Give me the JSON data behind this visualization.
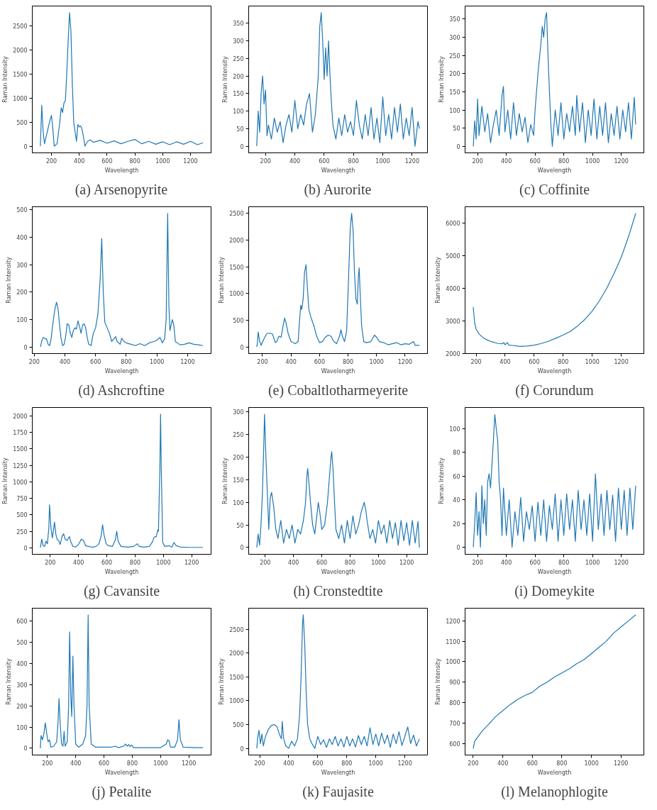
{
  "chart_data": [
    {
      "type": "line",
      "title": "(a) Arsenopyrite",
      "xlabel": "Wavelength",
      "ylabel": "Raman Intensity",
      "xlim": [
        62,
        1348
      ],
      "ylim": [
        -140,
        2920
      ],
      "xticks": [
        200,
        400,
        600,
        800,
        1000,
        1200
      ],
      "yticks": [
        0,
        500,
        1000,
        1500,
        2000,
        2500
      ],
      "series": [
        {
          "color": "#1f77b4",
          "x": [
            120,
            130,
            140,
            150,
            170,
            190,
            200,
            210,
            220,
            240,
            260,
            270,
            280,
            290,
            300,
            310,
            320,
            330,
            340,
            350,
            360,
            370,
            380,
            390,
            400,
            410,
            420,
            430,
            440,
            460,
            480,
            500,
            550,
            600,
            650,
            700,
            750,
            800,
            850,
            900,
            950,
            1000,
            1050,
            1100,
            1150,
            1200,
            1250,
            1290
          ],
          "values": [
            0,
            850,
            300,
            50,
            300,
            550,
            640,
            350,
            0,
            50,
            500,
            800,
            700,
            900,
            950,
            1500,
            2200,
            2780,
            2400,
            1300,
            500,
            300,
            100,
            450,
            400,
            420,
            350,
            200,
            0,
            100,
            130,
            80,
            120,
            60,
            110,
            50,
            100,
            140,
            50,
            100,
            40,
            90,
            30,
            90,
            40,
            100,
            30,
            70
          ]
        }
      ]
    },
    {
      "type": "line",
      "title": "(b) Aurorite",
      "xlabel": "Wavelength",
      "ylabel": "Raman Intensity",
      "xlim": [
        85,
        1305
      ],
      "ylim": [
        -19,
        399
      ],
      "xticks": [
        200,
        400,
        600,
        800,
        1000,
        1200
      ],
      "yticks": [
        0,
        50,
        100,
        150,
        200,
        250,
        300,
        350
      ],
      "series": [
        {
          "color": "#1f77b4",
          "x": [
            140,
            150,
            160,
            170,
            180,
            190,
            200,
            210,
            220,
            240,
            260,
            280,
            300,
            320,
            340,
            360,
            380,
            400,
            420,
            440,
            460,
            480,
            500,
            520,
            540,
            560,
            570,
            580,
            590,
            600,
            610,
            620,
            630,
            640,
            650,
            660,
            680,
            700,
            720,
            740,
            760,
            780,
            800,
            820,
            840,
            860,
            880,
            900,
            920,
            940,
            960,
            980,
            1000,
            1020,
            1040,
            1060,
            1080,
            1100,
            1120,
            1140,
            1160,
            1180,
            1200,
            1220,
            1240,
            1250
          ],
          "values": [
            0,
            100,
            40,
            150,
            200,
            120,
            160,
            30,
            60,
            20,
            80,
            40,
            70,
            10,
            60,
            90,
            40,
            130,
            50,
            90,
            60,
            120,
            150,
            40,
            90,
            200,
            340,
            380,
            300,
            190,
            280,
            200,
            300,
            200,
            120,
            60,
            20,
            80,
            30,
            90,
            40,
            70,
            30,
            130,
            60,
            20,
            90,
            30,
            110,
            20,
            80,
            10,
            140,
            30,
            90,
            20,
            110,
            40,
            120,
            20,
            80,
            30,
            110,
            0,
            70,
            50
          ]
        }
      ]
    },
    {
      "type": "line",
      "title": "(c) Coffinite",
      "xlabel": "Wavelength",
      "ylabel": "Raman Intensity",
      "xlim": [
        113,
        1357
      ],
      "ylim": [
        -18,
        386
      ],
      "xticks": [
        200,
        400,
        600,
        800,
        1000,
        1200
      ],
      "yticks": [
        0,
        50,
        100,
        150,
        200,
        250,
        300,
        350
      ],
      "series": [
        {
          "color": "#1f77b4",
          "x": [
            170,
            180,
            190,
            200,
            210,
            230,
            250,
            270,
            290,
            310,
            330,
            350,
            370,
            380,
            390,
            410,
            430,
            450,
            470,
            490,
            510,
            530,
            550,
            570,
            590,
            600,
            620,
            640,
            650,
            660,
            670,
            680,
            690,
            700,
            710,
            720,
            740,
            760,
            780,
            800,
            820,
            840,
            860,
            880,
            890,
            910,
            930,
            950,
            970,
            990,
            1010,
            1030,
            1050,
            1070,
            1090,
            1110,
            1130,
            1150,
            1170,
            1190,
            1210,
            1230,
            1250,
            1270,
            1290,
            1300
          ],
          "values": [
            0,
            70,
            20,
            130,
            30,
            110,
            40,
            90,
            10,
            60,
            100,
            30,
            140,
            165,
            40,
            100,
            20,
            120,
            30,
            90,
            40,
            80,
            10,
            60,
            30,
            100,
            200,
            280,
            330,
            300,
            350,
            368,
            250,
            150,
            60,
            0,
            100,
            30,
            120,
            20,
            90,
            40,
            110,
            30,
            140,
            40,
            120,
            10,
            100,
            30,
            130,
            20,
            110,
            30,
            120,
            10,
            90,
            30,
            110,
            20,
            100,
            40,
            120,
            20,
            135,
            60
          ]
        }
      ]
    },
    {
      "type": "line",
      "title": "(d) Ashcroftine",
      "xlabel": "Wavelength",
      "ylabel": "Raman Intensity",
      "xlim": [
        187,
        1353
      ],
      "ylim": [
        -24,
        511
      ],
      "xticks": [
        200,
        400,
        600,
        800,
        1000,
        1200
      ],
      "yticks": [
        0,
        100,
        200,
        300,
        400,
        500
      ],
      "series": [
        {
          "color": "#1f77b4",
          "x": [
            240,
            250,
            260,
            270,
            280,
            290,
            300,
            310,
            320,
            335,
            345,
            355,
            365,
            375,
            385,
            395,
            405,
            415,
            425,
            435,
            445,
            455,
            465,
            475,
            485,
            495,
            505,
            515,
            525,
            535,
            545,
            555,
            570,
            585,
            600,
            615,
            630,
            640,
            650,
            660,
            675,
            690,
            705,
            720,
            730,
            740,
            760,
            770,
            785,
            800,
            830,
            860,
            890,
            920,
            950,
            980,
            1000,
            1020,
            1035,
            1050,
            1060,
            1070,
            1078,
            1085,
            1100,
            1110,
            1120,
            1150,
            1180,
            1210,
            1240,
            1270,
            1300
          ],
          "values": [
            0,
            25,
            35,
            30,
            30,
            10,
            5,
            30,
            80,
            140,
            163,
            140,
            80,
            30,
            5,
            10,
            40,
            85,
            80,
            50,
            35,
            60,
            70,
            65,
            95,
            75,
            50,
            80,
            85,
            70,
            35,
            10,
            5,
            50,
            70,
            120,
            250,
            395,
            200,
            90,
            70,
            50,
            20,
            30,
            38,
            20,
            10,
            32,
            20,
            15,
            10,
            5,
            12,
            5,
            15,
            20,
            25,
            35,
            15,
            30,
            100,
            487,
            150,
            60,
            100,
            80,
            20,
            8,
            10,
            15,
            10,
            8,
            5
          ]
        }
      ]
    },
    {
      "type": "line",
      "title": "(e) Cobaltlotharmeyerite",
      "xlabel": "Wavelength",
      "ylabel": "Raman Intensity",
      "xlim": [
        103,
        1357
      ],
      "ylim": [
        -125,
        2625
      ],
      "xticks": [
        200,
        400,
        600,
        800,
        1000,
        1200
      ],
      "yticks": [
        0,
        500,
        1000,
        1500,
        2000,
        2500
      ],
      "series": [
        {
          "color": "#1f77b4",
          "x": [
            160,
            165,
            170,
            180,
            190,
            210,
            230,
            250,
            270,
            290,
            300,
            315,
            330,
            345,
            355,
            365,
            380,
            400,
            430,
            450,
            460,
            468,
            475,
            485,
            495,
            505,
            515,
            525,
            540,
            560,
            580,
            600,
            620,
            640,
            660,
            680,
            700,
            720,
            740,
            750,
            760,
            775,
            790,
            805,
            815,
            825,
            835,
            845,
            855,
            865,
            872,
            878,
            885,
            895,
            910,
            930,
            960,
            985,
            1000,
            1020,
            1050,
            1080,
            1110,
            1140,
            1170,
            1200,
            1230,
            1260,
            1270,
            1300
          ],
          "values": [
            0,
            100,
            280,
            100,
            30,
            150,
            250,
            260,
            240,
            80,
            100,
            200,
            180,
            400,
            540,
            450,
            250,
            100,
            60,
            100,
            500,
            780,
            700,
            900,
            1400,
            1540,
            1100,
            700,
            550,
            400,
            200,
            80,
            100,
            180,
            220,
            200,
            100,
            60,
            200,
            320,
            200,
            100,
            300,
            1400,
            2200,
            2500,
            2200,
            1400,
            900,
            800,
            1300,
            1480,
            1000,
            400,
            100,
            80,
            100,
            220,
            180,
            100,
            80,
            40,
            60,
            80,
            40,
            60,
            50,
            100,
            30,
            30
          ]
        }
      ]
    },
    {
      "type": "line",
      "title": "(f) Corundum",
      "xlabel": "Wavelength",
      "ylabel": "Raman Intensity",
      "xlim": [
        124,
        1356
      ],
      "ylim": [
        2000,
        6500
      ],
      "xticks": [
        200,
        400,
        600,
        800,
        1000,
        1200
      ],
      "yticks": [
        2000,
        3000,
        4000,
        5000,
        6000
      ],
      "series": [
        {
          "color": "#1f77b4",
          "x": [
            180,
            190,
            200,
            220,
            250,
            280,
            310,
            350,
            380,
            390,
            400,
            415,
            425,
            450,
            500,
            550,
            600,
            650,
            700,
            750,
            800,
            850,
            900,
            950,
            1000,
            1050,
            1100,
            1150,
            1200,
            1250,
            1300
          ],
          "values": [
            3430,
            2950,
            2750,
            2600,
            2480,
            2410,
            2360,
            2310,
            2300,
            2340,
            2270,
            2340,
            2260,
            2250,
            2220,
            2230,
            2260,
            2310,
            2380,
            2470,
            2570,
            2680,
            2850,
            3050,
            3300,
            3620,
            4000,
            4450,
            4950,
            5580,
            6300
          ]
        }
      ]
    },
    {
      "type": "line",
      "title": "(g) Cavansite",
      "xlabel": "Wavelength",
      "ylabel": "Raman Intensity",
      "xlim": [
        73,
        1337
      ],
      "ylim": [
        -100,
        2130
      ],
      "xticks": [
        200,
        400,
        600,
        800,
        1000,
        1200
      ],
      "yticks": [
        0,
        250,
        500,
        750,
        1000,
        1250,
        1500,
        1750,
        2000
      ],
      "series": [
        {
          "color": "#1f77b4",
          "x": [
            130,
            140,
            150,
            160,
            170,
            180,
            190,
            195,
            205,
            215,
            225,
            230,
            240,
            250,
            260,
            270,
            285,
            295,
            305,
            320,
            335,
            345,
            360,
            380,
            400,
            420,
            435,
            450,
            470,
            490,
            510,
            530,
            545,
            560,
            570,
            580,
            595,
            610,
            640,
            660,
            670,
            680,
            700,
            750,
            790,
            815,
            830,
            860,
            900,
            920,
            935,
            950,
            960,
            965,
            975,
            980,
            985,
            995,
            1010,
            1040,
            1060,
            1075,
            1090,
            1120,
            1180,
            1280
          ],
          "values": [
            0,
            130,
            30,
            20,
            100,
            60,
            300,
            650,
            300,
            150,
            300,
            390,
            200,
            120,
            110,
            50,
            180,
            210,
            130,
            110,
            170,
            90,
            20,
            10,
            50,
            130,
            110,
            30,
            20,
            10,
            10,
            30,
            60,
            180,
            350,
            200,
            60,
            30,
            20,
            120,
            250,
            100,
            20,
            10,
            20,
            60,
            20,
            10,
            20,
            80,
            160,
            170,
            270,
            250,
            1200,
            2030,
            1200,
            80,
            20,
            30,
            10,
            80,
            30,
            10,
            5,
            5
          ]
        }
      ]
    },
    {
      "type": "line",
      "title": "(h) Cronstedtite",
      "xlabel": "Wavelength",
      "ylabel": "Raman Intensity",
      "xlim": [
        83,
        1347
      ],
      "ylim": [
        -15,
        310
      ],
      "xticks": [
        200,
        400,
        600,
        800,
        1000,
        1200
      ],
      "yticks": [
        0,
        50,
        100,
        150,
        200,
        250,
        300
      ],
      "series": [
        {
          "color": "#1f77b4",
          "x": [
            140,
            150,
            160,
            170,
            180,
            190,
            195,
            205,
            215,
            225,
            235,
            245,
            260,
            275,
            290,
            310,
            330,
            350,
            370,
            390,
            410,
            430,
            450,
            470,
            485,
            495,
            500,
            510,
            520,
            535,
            550,
            565,
            575,
            585,
            600,
            620,
            640,
            655,
            665,
            670,
            680,
            690,
            700,
            720,
            740,
            760,
            780,
            800,
            820,
            840,
            860,
            880,
            900,
            910,
            920,
            940,
            960,
            980,
            1000,
            1020,
            1040,
            1060,
            1080,
            1100,
            1120,
            1140,
            1160,
            1180,
            1200,
            1220,
            1240,
            1260,
            1280,
            1290
          ],
          "values": [
            0,
            30,
            5,
            50,
            120,
            230,
            295,
            200,
            120,
            40,
            110,
            122,
            90,
            40,
            20,
            60,
            10,
            40,
            20,
            50,
            10,
            40,
            30,
            60,
            100,
            160,
            175,
            140,
            100,
            50,
            30,
            70,
            100,
            80,
            40,
            50,
            100,
            160,
            200,
            212,
            170,
            100,
            40,
            20,
            50,
            10,
            60,
            20,
            70,
            30,
            50,
            80,
            100,
            85,
            60,
            20,
            40,
            10,
            60,
            30,
            50,
            10,
            60,
            20,
            55,
            5,
            60,
            15,
            55,
            5,
            60,
            10,
            58,
            0
          ]
        }
      ]
    },
    {
      "type": "line",
      "title": "(i) Domeykite",
      "xlabel": "Wavelength",
      "ylabel": "Raman Intensity",
      "xlim": [
        113,
        1357
      ],
      "ylim": [
        -6,
        118
      ],
      "xticks": [
        200,
        400,
        600,
        800,
        1000,
        1200
      ],
      "yticks": [
        0,
        20,
        40,
        60,
        80,
        100
      ],
      "series": [
        {
          "color": "#1f77b4",
          "x": [
            170,
            180,
            190,
            200,
            210,
            220,
            230,
            240,
            250,
            260,
            270,
            280,
            290,
            300,
            310,
            320,
            330,
            340,
            350,
            360,
            370,
            380,
            400,
            420,
            440,
            460,
            480,
            500,
            520,
            540,
            560,
            580,
            600,
            620,
            640,
            660,
            680,
            700,
            720,
            740,
            760,
            780,
            800,
            820,
            840,
            860,
            880,
            900,
            920,
            940,
            960,
            980,
            1000,
            1020,
            1040,
            1060,
            1080,
            1100,
            1120,
            1140,
            1160,
            1180,
            1200,
            1220,
            1240,
            1260,
            1280,
            1300
          ],
          "values": [
            0,
            20,
            46,
            10,
            30,
            0,
            52,
            20,
            40,
            10,
            55,
            62,
            50,
            70,
            90,
            112,
            100,
            90,
            55,
            40,
            10,
            50,
            10,
            40,
            0,
            30,
            10,
            42,
            5,
            30,
            15,
            35,
            5,
            38,
            10,
            40,
            5,
            35,
            15,
            45,
            5,
            40,
            10,
            45,
            15,
            40,
            5,
            48,
            15,
            40,
            10,
            45,
            5,
            62,
            15,
            45,
            10,
            48,
            15,
            44,
            5,
            50,
            15,
            48,
            10,
            50,
            15,
            52
          ]
        }
      ]
    },
    {
      "type": "line",
      "title": "(j) Petalite",
      "xlabel": "Wavelength",
      "ylabel": "Raman Intensity",
      "xlim": [
        93,
        1357
      ],
      "ylim": [
        -32,
        662
      ],
      "xticks": [
        200,
        400,
        600,
        800,
        1000,
        1200
      ],
      "yticks": [
        0,
        100,
        200,
        300,
        400,
        500,
        600
      ],
      "series": [
        {
          "color": "#1f77b4",
          "x": [
            150,
            155,
            165,
            175,
            185,
            195,
            205,
            215,
            225,
            245,
            265,
            275,
            282,
            290,
            300,
            310,
            318,
            325,
            340,
            350,
            357,
            365,
            372,
            380,
            388,
            400,
            420,
            450,
            470,
            480,
            488,
            495,
            510,
            540,
            600,
            650,
            680,
            700,
            740,
            750,
            765,
            775,
            785,
            795,
            810,
            900,
            1000,
            1040,
            1050,
            1060,
            1070,
            1100,
            1120,
            1130,
            1140,
            1160,
            1250,
            1300
          ],
          "values": [
            0,
            60,
            40,
            70,
            120,
            70,
            30,
            40,
            5,
            10,
            30,
            120,
            235,
            120,
            20,
            10,
            80,
            10,
            30,
            200,
            550,
            250,
            150,
            435,
            200,
            20,
            5,
            20,
            60,
            200,
            630,
            200,
            20,
            5,
            5,
            5,
            10,
            3,
            10,
            20,
            10,
            18,
            8,
            15,
            3,
            3,
            3,
            20,
            40,
            35,
            5,
            5,
            40,
            135,
            40,
            5,
            3,
            3
          ]
        }
      ]
    },
    {
      "type": "line",
      "title": "(k) Faujasite",
      "xlabel": "Wavelength",
      "ylabel": "Raman Intensity",
      "xlim": [
        124,
        1356
      ],
      "ylim": [
        -140,
        2940
      ],
      "xticks": [
        200,
        400,
        600,
        800,
        1000,
        1200
      ],
      "yticks": [
        0,
        500,
        1000,
        1500,
        2000,
        2500
      ],
      "series": [
        {
          "color": "#1f77b4",
          "x": [
            180,
            185,
            195,
            205,
            215,
            225,
            240,
            260,
            280,
            300,
            320,
            335,
            350,
            355,
            365,
            380,
            400,
            420,
            440,
            460,
            475,
            485,
            495,
            500,
            510,
            520,
            530,
            545,
            560,
            580,
            600,
            620,
            640,
            660,
            680,
            700,
            720,
            740,
            760,
            780,
            800,
            820,
            840,
            860,
            880,
            900,
            920,
            940,
            960,
            980,
            1000,
            1020,
            1040,
            1060,
            1080,
            1100,
            1120,
            1140,
            1160,
            1180,
            1200,
            1220,
            1240,
            1260,
            1280,
            1300
          ],
          "values": [
            0,
            200,
            380,
            100,
            300,
            50,
            250,
            400,
            480,
            500,
            450,
            300,
            200,
            570,
            200,
            50,
            0,
            150,
            50,
            200,
            700,
            1500,
            2600,
            2800,
            2200,
            1200,
            500,
            200,
            100,
            0,
            250,
            80,
            180,
            20,
            200,
            80,
            250,
            50,
            200,
            30,
            250,
            50,
            200,
            30,
            270,
            80,
            250,
            50,
            430,
            80,
            300,
            50,
            320,
            100,
            280,
            20,
            300,
            100,
            350,
            60,
            250,
            450,
            100,
            280,
            50,
            200
          ]
        }
      ]
    },
    {
      "type": "line",
      "title": "(l) Melanophlogite",
      "xlabel": "Wavelength",
      "ylabel": "Raman Intensity",
      "xlim": [
        145,
        1355
      ],
      "ylim": [
        543,
        1262
      ],
      "xticks": [
        200,
        400,
        600,
        800,
        1000,
        1200
      ],
      "yticks": [
        600,
        700,
        800,
        900,
        1000,
        1100,
        1200
      ],
      "series": [
        {
          "color": "#1f77b4",
          "x": [
            200,
            210,
            230,
            260,
            300,
            350,
            400,
            450,
            500,
            550,
            600,
            650,
            700,
            750,
            800,
            850,
            900,
            950,
            1000,
            1050,
            1100,
            1150,
            1200,
            1250,
            1300
          ],
          "values": [
            575,
            610,
            630,
            660,
            690,
            730,
            760,
            790,
            815,
            835,
            850,
            880,
            900,
            925,
            945,
            965,
            990,
            1010,
            1040,
            1070,
            1100,
            1140,
            1170,
            1200,
            1230
          ]
        }
      ]
    }
  ]
}
